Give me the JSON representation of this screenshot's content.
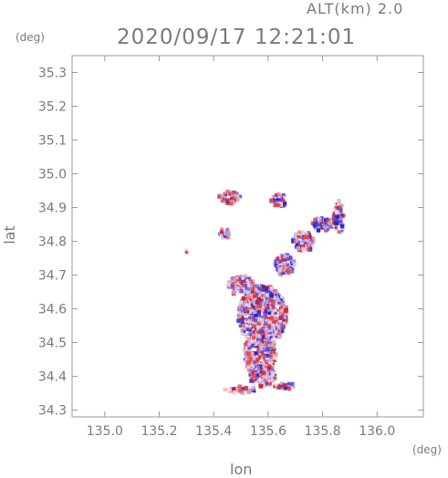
{
  "header": {
    "altitude": "ALT(km)  2.0",
    "timestamp": "2020/09/17 12:21:01"
  },
  "chart_data": {
    "type": "scatter",
    "title": "2020/09/17 12:21:01",
    "subtitle": "ALT(km)  2.0",
    "xlabel": "lon",
    "ylabel": "lat",
    "x_unit": "(deg)",
    "y_unit": "(deg)",
    "xlim": [
      134.88,
      136.17
    ],
    "ylim": [
      34.28,
      35.35
    ],
    "x_ticks": [
      "135.0",
      "135.2",
      "135.4",
      "135.6",
      "135.8",
      "136.0"
    ],
    "y_ticks": [
      "34.3",
      "34.4",
      "34.5",
      "34.6",
      "34.7",
      "34.8",
      "34.9",
      "35.0",
      "35.1",
      "35.2",
      "35.3"
    ],
    "grid": false,
    "colors": {
      "positive": "#ee4444",
      "negative": "#4444ee",
      "axis": "#999999"
    },
    "clusters": [
      {
        "lon": 135.58,
        "lat": 34.58,
        "rlon": 0.09,
        "rlat": 0.09
      },
      {
        "lon": 135.57,
        "lat": 34.47,
        "rlon": 0.06,
        "rlat": 0.07
      },
      {
        "lon": 135.58,
        "lat": 34.4,
        "rlon": 0.05,
        "rlat": 0.03
      },
      {
        "lon": 135.5,
        "lat": 34.67,
        "rlon": 0.05,
        "rlat": 0.03
      },
      {
        "lon": 135.66,
        "lat": 34.73,
        "rlon": 0.04,
        "rlat": 0.03
      },
      {
        "lon": 135.73,
        "lat": 34.8,
        "rlon": 0.04,
        "rlat": 0.03
      },
      {
        "lon": 135.8,
        "lat": 34.85,
        "rlon": 0.04,
        "rlat": 0.02
      },
      {
        "lon": 135.86,
        "lat": 34.87,
        "rlon": 0.02,
        "rlat": 0.05
      },
      {
        "lon": 135.46,
        "lat": 34.93,
        "rlon": 0.04,
        "rlat": 0.02
      },
      {
        "lon": 135.64,
        "lat": 34.92,
        "rlon": 0.03,
        "rlat": 0.02
      },
      {
        "lon": 135.5,
        "lat": 34.36,
        "rlon": 0.06,
        "rlat": 0.01
      },
      {
        "lon": 135.66,
        "lat": 34.37,
        "rlon": 0.04,
        "rlat": 0.01
      },
      {
        "lon": 135.44,
        "lat": 34.82,
        "rlon": 0.02,
        "rlat": 0.02
      },
      {
        "lon": 135.3,
        "lat": 34.77,
        "rlon": 0.005,
        "rlat": 0.005
      }
    ]
  }
}
